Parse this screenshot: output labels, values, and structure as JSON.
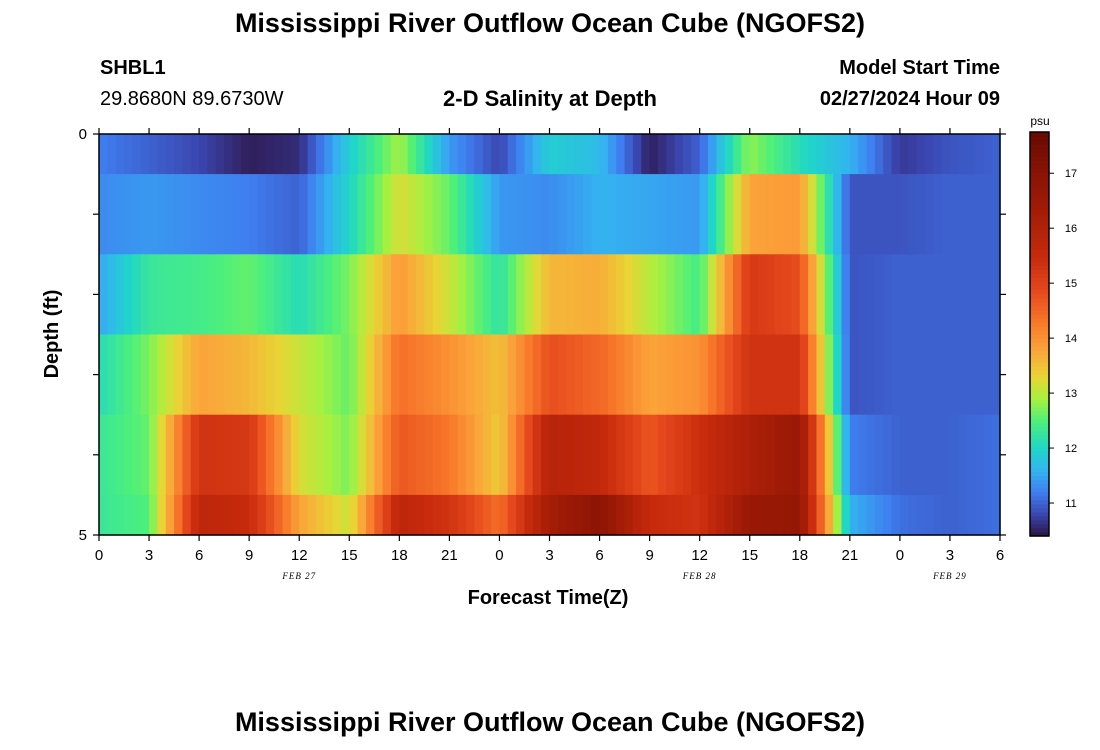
{
  "page": {
    "title": "Mississippi River Outflow Ocean Cube (NGOFS2)",
    "title_repeat": "Mississippi River Outflow Ocean Cube (NGOFS2)",
    "station_id": "SHBL1",
    "station_coords": "29.8680N  89.6730W",
    "plot_title": "2-D Salinity at Depth",
    "model_start_label": "Model Start Time",
    "model_start_value": "02/27/2024 Hour 09"
  },
  "chart_data": {
    "type": "heatmap",
    "title": "2-D Salinity at Depth",
    "xlabel": "Forecast Time(Z)",
    "ylabel": "Depth (ft)",
    "x_range_hours": [
      0,
      54
    ],
    "y_range_ft": [
      0,
      5
    ],
    "y_ticks": [
      0,
      5
    ],
    "x_tick_labels": [
      "0",
      "3",
      "6",
      "9",
      "12",
      "15",
      "18",
      "21",
      "0",
      "3",
      "6",
      "9",
      "12",
      "15",
      "18",
      "21",
      "0",
      "3",
      "6"
    ],
    "date_labels": [
      {
        "text": "FEB 27",
        "hour": 12
      },
      {
        "text": "FEB 28",
        "hour": 36
      },
      {
        "text": "FEB 29",
        "hour": 51
      }
    ],
    "colorbar": {
      "unit": "psu",
      "vmin": 10.4,
      "vmax": 17.75,
      "tick_labels": [
        "11",
        "12",
        "13",
        "14",
        "15",
        "16",
        "17"
      ],
      "tick_values": [
        11,
        12,
        13,
        14,
        15,
        16,
        17
      ]
    },
    "colormap": [
      [
        10.4,
        "#2b1240"
      ],
      [
        10.8,
        "#3b46b0"
      ],
      [
        11.2,
        "#3f7ef0"
      ],
      [
        11.6,
        "#34b3f0"
      ],
      [
        12.0,
        "#1fd6c8"
      ],
      [
        12.5,
        "#4ef07a"
      ],
      [
        12.9,
        "#a8f040"
      ],
      [
        13.3,
        "#e8d535"
      ],
      [
        13.8,
        "#fba33a"
      ],
      [
        14.3,
        "#f8772a"
      ],
      [
        14.9,
        "#e4461c"
      ],
      [
        15.5,
        "#c62a0c"
      ],
      [
        16.4,
        "#a01b06"
      ],
      [
        17.75,
        "#6a0a02"
      ]
    ],
    "hours": [
      0,
      3,
      6,
      9,
      12,
      15,
      18,
      21,
      24,
      27,
      30,
      33,
      36,
      39,
      42,
      45,
      48,
      51,
      54
    ],
    "layers": [
      {
        "depth_ft": "0-0.5",
        "salinity": [
          11.2,
          11.0,
          10.8,
          10.5,
          10.6,
          11.9,
          12.9,
          11.4,
          10.8,
          11.9,
          11.7,
          10.5,
          11.0,
          12.8,
          12.1,
          11.6,
          10.7,
          10.9,
          11.0
        ]
      },
      {
        "depth_ft": "0.5-1.5",
        "salinity": [
          11.3,
          11.4,
          11.3,
          11.2,
          11.0,
          12.0,
          13.2,
          12.6,
          11.4,
          11.3,
          11.6,
          11.5,
          11.4,
          13.8,
          13.9,
          10.9,
          10.9,
          11.0,
          11.0
        ]
      },
      {
        "depth_ft": "1.5-2.5",
        "salinity": [
          11.5,
          12.3,
          12.4,
          12.6,
          12.1,
          12.7,
          13.9,
          13.1,
          12.2,
          13.6,
          13.7,
          13.0,
          12.4,
          15.2,
          14.8,
          10.9,
          11.0,
          11.0,
          11.0
        ]
      },
      {
        "depth_ft": "2.5-3.5",
        "salinity": [
          12.1,
          12.7,
          13.8,
          13.6,
          13.1,
          12.6,
          14.4,
          14.0,
          13.5,
          14.8,
          14.5,
          13.8,
          14.0,
          15.3,
          15.3,
          10.9,
          11.0,
          11.0,
          11.0
        ]
      },
      {
        "depth_ft": "3.5-4.5",
        "salinity": [
          12.3,
          12.6,
          15.3,
          15.2,
          13.2,
          12.7,
          14.7,
          14.3,
          13.4,
          15.9,
          15.6,
          14.7,
          15.4,
          16.1,
          16.6,
          11.2,
          11.0,
          11.0,
          11.1
        ]
      },
      {
        "depth_ft": "4.5-5",
        "salinity": [
          12.3,
          12.5,
          15.7,
          15.5,
          13.8,
          13.1,
          15.7,
          15.3,
          14.4,
          16.3,
          16.9,
          15.5,
          15.3,
          16.6,
          16.7,
          11.6,
          11.1,
          11.0,
          11.1
        ]
      }
    ]
  }
}
